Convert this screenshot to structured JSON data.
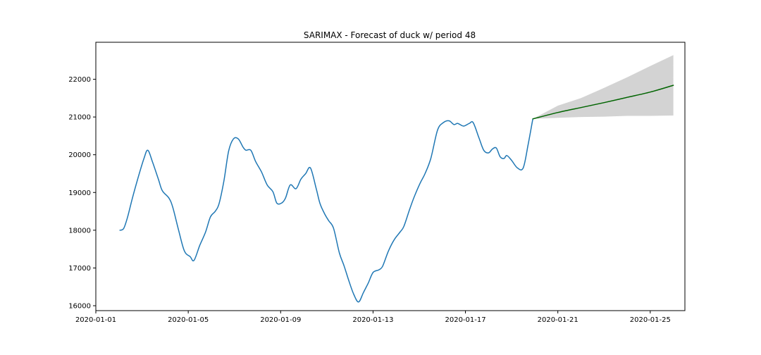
{
  "chart_data": {
    "type": "line",
    "title": "SARIMAX - Forecast of duck w/ period 48",
    "xlabel": "",
    "ylabel": "",
    "xlim": [
      "2020-01-01T00:00",
      "2020-01-26T12:00"
    ],
    "ylim": [
      15870,
      22980
    ],
    "grid": false,
    "legend": "none",
    "x_ticks": [
      "2020-01-01",
      "2020-01-05",
      "2020-01-09",
      "2020-01-13",
      "2020-01-17",
      "2020-01-21",
      "2020-01-25"
    ],
    "y_ticks": [
      16000,
      17000,
      18000,
      19000,
      20000,
      21000,
      22000
    ],
    "series": [
      {
        "role": "observed",
        "color": "#1f77b4",
        "points": [
          [
            "2020-01-02T01:00",
            18000
          ],
          [
            "2020-01-02T05:00",
            18050
          ],
          [
            "2020-01-02T09:00",
            18350
          ],
          [
            "2020-01-02T14:00",
            18850
          ],
          [
            "2020-01-02T20:00",
            19400
          ],
          [
            "2020-01-03T02:00",
            19900
          ],
          [
            "2020-01-03T06:00",
            20120
          ],
          [
            "2020-01-03T11:00",
            19800
          ],
          [
            "2020-01-03T17:00",
            19350
          ],
          [
            "2020-01-03T21:00",
            19050
          ],
          [
            "2020-01-04T04:00",
            18850
          ],
          [
            "2020-01-04T08:00",
            18600
          ],
          [
            "2020-01-04T14:00",
            18000
          ],
          [
            "2020-01-04T20:00",
            17450
          ],
          [
            "2020-01-05T02:00",
            17300
          ],
          [
            "2020-01-05T06:00",
            17200
          ],
          [
            "2020-01-05T12:00",
            17600
          ],
          [
            "2020-01-05T18:00",
            17950
          ],
          [
            "2020-01-05T23:00",
            18350
          ],
          [
            "2020-01-06T04:00",
            18500
          ],
          [
            "2020-01-06T08:00",
            18700
          ],
          [
            "2020-01-06T13:00",
            19300
          ],
          [
            "2020-01-06T18:00",
            20100
          ],
          [
            "2020-01-06T23:00",
            20420
          ],
          [
            "2020-01-07T04:00",
            20420
          ],
          [
            "2020-01-07T09:00",
            20200
          ],
          [
            "2020-01-07T12:00",
            20120
          ],
          [
            "2020-01-07T17:00",
            20120
          ],
          [
            "2020-01-07T22:00",
            19820
          ],
          [
            "2020-01-08T04:00",
            19550
          ],
          [
            "2020-01-08T10:00",
            19200
          ],
          [
            "2020-01-08T16:00",
            19020
          ],
          [
            "2020-01-08T20:00",
            18720
          ],
          [
            "2020-01-09T01:00",
            18720
          ],
          [
            "2020-01-09T05:00",
            18850
          ],
          [
            "2020-01-09T10:00",
            19200
          ],
          [
            "2020-01-09T16:00",
            19100
          ],
          [
            "2020-01-09T21:00",
            19350
          ],
          [
            "2020-01-10T02:00",
            19500
          ],
          [
            "2020-01-10T07:00",
            19650
          ],
          [
            "2020-01-10T13:00",
            19100
          ],
          [
            "2020-01-10T17:00",
            18700
          ],
          [
            "2020-01-10T22:00",
            18420
          ],
          [
            "2020-01-11T02:00",
            18250
          ],
          [
            "2020-01-11T07:00",
            18050
          ],
          [
            "2020-01-11T13:00",
            17400
          ],
          [
            "2020-01-11T18:00",
            17050
          ],
          [
            "2020-01-11T23:00",
            16650
          ],
          [
            "2020-01-12T04:00",
            16300
          ],
          [
            "2020-01-12T09:00",
            16100
          ],
          [
            "2020-01-12T14:00",
            16350
          ],
          [
            "2020-01-12T19:00",
            16600
          ],
          [
            "2020-01-13T00:00",
            16880
          ],
          [
            "2020-01-13T06:00",
            16950
          ],
          [
            "2020-01-13T10:00",
            17050
          ],
          [
            "2020-01-13T16:00",
            17450
          ],
          [
            "2020-01-13T22:00",
            17750
          ],
          [
            "2020-01-14T04:00",
            17950
          ],
          [
            "2020-01-14T08:00",
            18100
          ],
          [
            "2020-01-14T14:00",
            18550
          ],
          [
            "2020-01-14T19:00",
            18900
          ],
          [
            "2020-01-15T01:00",
            19250
          ],
          [
            "2020-01-15T06:00",
            19500
          ],
          [
            "2020-01-15T12:00",
            19900
          ],
          [
            "2020-01-15T19:00",
            20650
          ],
          [
            "2020-01-16T01:00",
            20850
          ],
          [
            "2020-01-16T07:00",
            20900
          ],
          [
            "2020-01-16T12:00",
            20800
          ],
          [
            "2020-01-16T16:00",
            20830
          ],
          [
            "2020-01-16T22:00",
            20760
          ],
          [
            "2020-01-17T04:00",
            20830
          ],
          [
            "2020-01-17T08:00",
            20850
          ],
          [
            "2020-01-17T14:00",
            20450
          ],
          [
            "2020-01-17T19:00",
            20120
          ],
          [
            "2020-01-18T00:00",
            20050
          ],
          [
            "2020-01-18T04:00",
            20150
          ],
          [
            "2020-01-18T08:00",
            20180
          ],
          [
            "2020-01-18T12:00",
            19950
          ],
          [
            "2020-01-18T16:00",
            19900
          ],
          [
            "2020-01-18T19:00",
            19980
          ],
          [
            "2020-01-19T00:00",
            19850
          ],
          [
            "2020-01-19T06:00",
            19650
          ],
          [
            "2020-01-19T12:00",
            19650
          ],
          [
            "2020-01-19T17:00",
            20250
          ],
          [
            "2020-01-19T22:00",
            20950
          ]
        ]
      },
      {
        "role": "forecast",
        "color": "#006400",
        "points": [
          [
            "2020-01-19T22:00",
            20950
          ],
          [
            "2020-01-21T00:00",
            21120
          ],
          [
            "2020-01-22T00:00",
            21250
          ],
          [
            "2020-01-23T00:00",
            21380
          ],
          [
            "2020-01-24T00:00",
            21520
          ],
          [
            "2020-01-25T00:00",
            21660
          ],
          [
            "2020-01-26T00:00",
            21840
          ]
        ]
      }
    ],
    "confidence_band": {
      "color": "#d3d3d3",
      "x": [
        "2020-01-19T22:00",
        "2020-01-21T00:00",
        "2020-01-22T00:00",
        "2020-01-23T00:00",
        "2020-01-24T00:00",
        "2020-01-25T00:00",
        "2020-01-26T00:00"
      ],
      "upper": [
        20950,
        21300,
        21500,
        21770,
        22050,
        22350,
        22640
      ],
      "lower": [
        20950,
        20980,
        21000,
        21010,
        21030,
        21030,
        21040
      ]
    }
  }
}
